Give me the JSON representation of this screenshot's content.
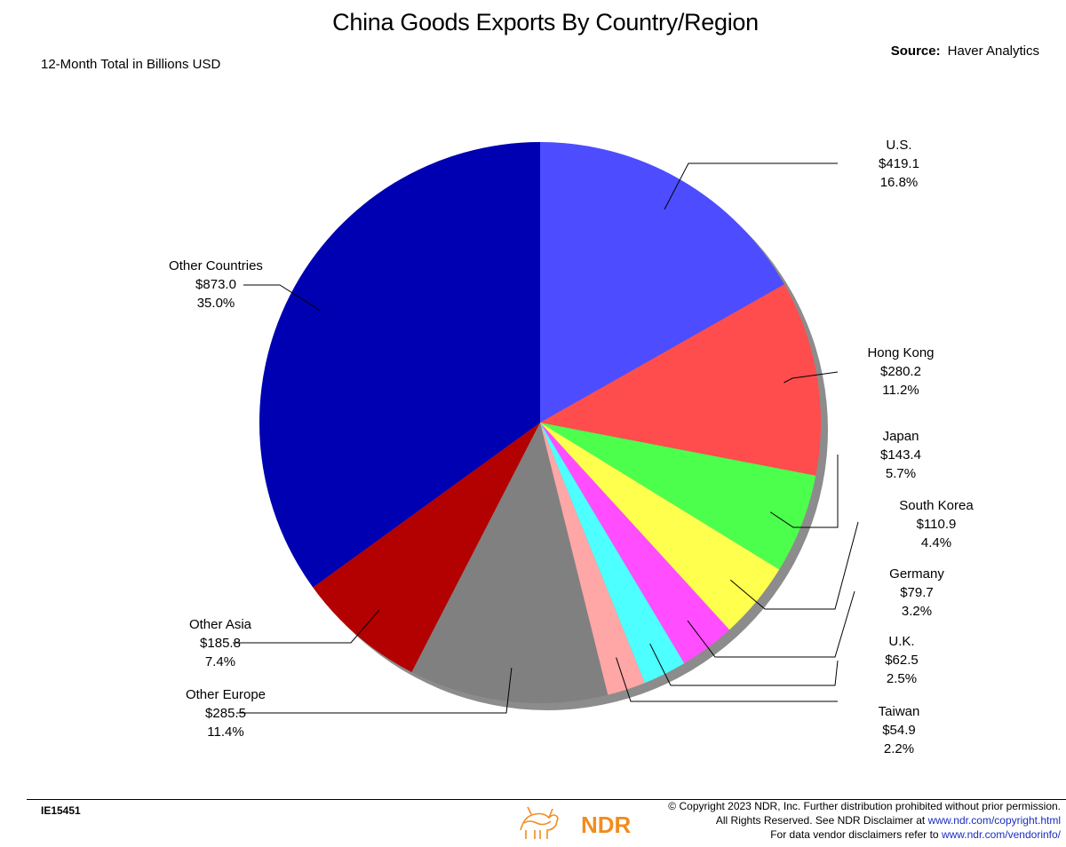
{
  "chart_data": {
    "type": "pie",
    "title": "China Goods Exports By Country/Region",
    "subtitle": "12-Month Total in Billions USD",
    "slices": [
      {
        "name": "U.S.",
        "value_label": "$419.1",
        "pct_label": "16.8%",
        "value": 419.1,
        "pct": 16.8,
        "color": "#4d4dff"
      },
      {
        "name": "Hong Kong",
        "value_label": "$280.2",
        "pct_label": "11.2%",
        "value": 280.2,
        "pct": 11.2,
        "color": "#ff4d4d"
      },
      {
        "name": "Japan",
        "value_label": "$143.4",
        "pct_label": "5.7%",
        "value": 143.4,
        "pct": 5.7,
        "color": "#4dff4d"
      },
      {
        "name": "South Korea",
        "value_label": "$110.9",
        "pct_label": "4.4%",
        "value": 110.9,
        "pct": 4.4,
        "color": "#ffff4d"
      },
      {
        "name": "Germany",
        "value_label": "$79.7",
        "pct_label": "3.2%",
        "value": 79.7,
        "pct": 3.2,
        "color": "#ff4dff"
      },
      {
        "name": "U.K.",
        "value_label": "$62.5",
        "pct_label": "2.5%",
        "value": 62.5,
        "pct": 2.5,
        "color": "#4dffff"
      },
      {
        "name": "Taiwan",
        "value_label": "$54.9",
        "pct_label": "2.2%",
        "value": 54.9,
        "pct": 2.2,
        "color": "#ffa6a6"
      },
      {
        "name": "Other Europe",
        "value_label": "$285.5",
        "pct_label": "11.4%",
        "value": 285.5,
        "pct": 11.4,
        "color": "#808080"
      },
      {
        "name": "Other Asia",
        "value_label": "$185.8",
        "pct_label": "7.4%",
        "value": 185.8,
        "pct": 7.4,
        "color": "#b30000"
      },
      {
        "name": "Other Countries",
        "value_label": "$873.0",
        "pct_label": "35.0%",
        "value": 873.0,
        "pct": 35.0,
        "color": "#0000b3"
      }
    ],
    "legend": "none"
  },
  "source": {
    "label": "Source:",
    "value": "Haver Analytics"
  },
  "footer": {
    "chart_code": "IE15451",
    "brand": "NDR",
    "copyright_line1": "© Copyright 2023 NDR, Inc. Further distribution prohibited without prior permission.",
    "copyright_line2_prefix": "All Rights Reserved. See NDR Disclaimer at ",
    "copyright_line2_url": "www.ndr.com/copyright.html",
    "copyright_line3_prefix": "For data vendor disclaimers refer to ",
    "copyright_line3_url": "www.ndr.com/vendorinfo/"
  }
}
